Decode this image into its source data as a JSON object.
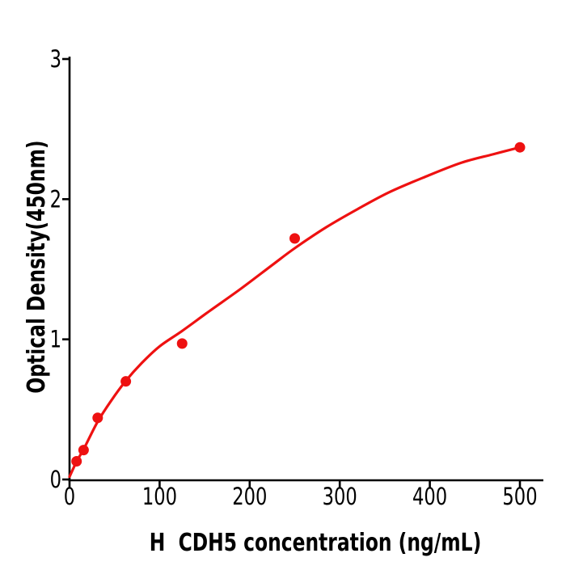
{
  "chart_data": {
    "type": "scatter",
    "title": "",
    "xlabel": "H  CDH5 concentration (ng/mL)",
    "ylabel": "Optical Density(450nm)",
    "xticks": [
      0,
      100,
      200,
      300,
      400,
      500
    ],
    "yticks": [
      0,
      1,
      2,
      3
    ],
    "xlim": [
      0,
      526
    ],
    "ylim": [
      0,
      3
    ],
    "grid": false,
    "legend": "none",
    "points": {
      "x": [
        7.8,
        15.6,
        31.25,
        62.5,
        125,
        250,
        500
      ],
      "y": [
        0.13,
        0.21,
        0.44,
        0.7,
        0.97,
        1.72,
        2.37
      ]
    },
    "fit_curve": [
      [
        0,
        0.02
      ],
      [
        8,
        0.13
      ],
      [
        16,
        0.22
      ],
      [
        31,
        0.41
      ],
      [
        46,
        0.56
      ],
      [
        62,
        0.7
      ],
      [
        80,
        0.83
      ],
      [
        100,
        0.95
      ],
      [
        125,
        1.06
      ],
      [
        155,
        1.2
      ],
      [
        190,
        1.36
      ],
      [
        225,
        1.53
      ],
      [
        250,
        1.65
      ],
      [
        285,
        1.8
      ],
      [
        320,
        1.93
      ],
      [
        355,
        2.05
      ],
      [
        395,
        2.16
      ],
      [
        435,
        2.26
      ],
      [
        470,
        2.32
      ],
      [
        500,
        2.37
      ]
    ],
    "marker_color": "#ee1111",
    "line_color": "#ee1111",
    "axis_color": "#000000",
    "background": "#ffffff"
  }
}
